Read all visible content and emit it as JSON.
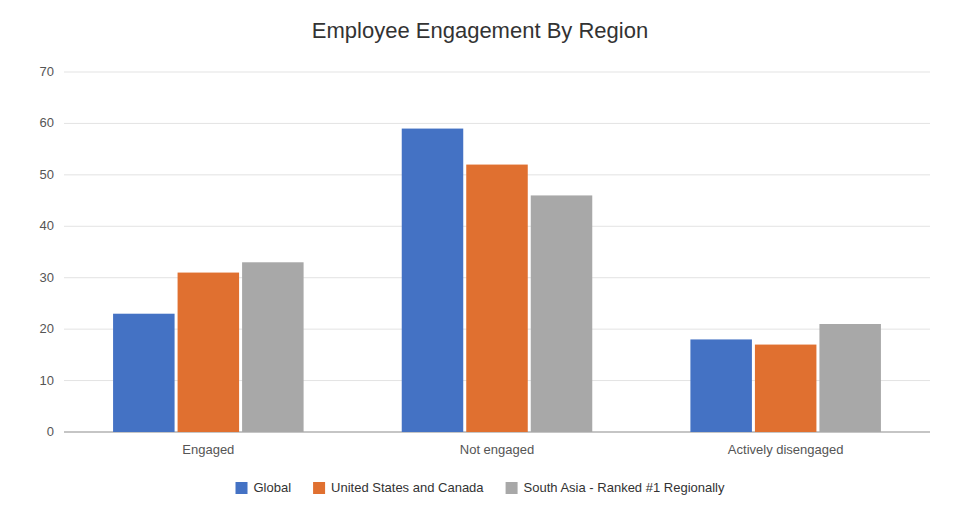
{
  "chart_data": {
    "type": "bar",
    "title": "Employee Engagement By Region",
    "categories": [
      "Engaged",
      "Not engaged",
      "Actively disengaged"
    ],
    "series": [
      {
        "name": "Global",
        "color": "#4472C4",
        "values": [
          23,
          59,
          18
        ]
      },
      {
        "name": "United States and Canada",
        "color": "#E07030",
        "values": [
          31,
          52,
          17
        ]
      },
      {
        "name": "South Asia - Ranked #1 Regionally",
        "color": "#A8A8A8",
        "values": [
          33,
          46,
          21
        ]
      }
    ],
    "ylim": [
      0,
      70
    ],
    "yticks": [
      0,
      10,
      20,
      30,
      40,
      50,
      60,
      70
    ],
    "grid": true,
    "legend": "bottom"
  }
}
